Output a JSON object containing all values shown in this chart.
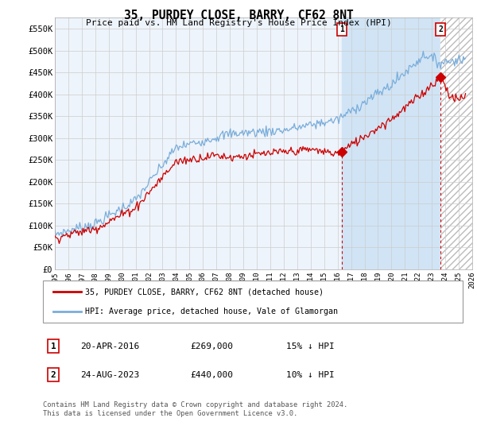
{
  "title": "35, PURDEY CLOSE, BARRY, CF62 8NT",
  "subtitle": "Price paid vs. HM Land Registry's House Price Index (HPI)",
  "ylabel_ticks": [
    "£0",
    "£50K",
    "£100K",
    "£150K",
    "£200K",
    "£250K",
    "£300K",
    "£350K",
    "£400K",
    "£450K",
    "£500K",
    "£550K"
  ],
  "ytick_values": [
    0,
    50000,
    100000,
    150000,
    200000,
    250000,
    300000,
    350000,
    400000,
    450000,
    500000,
    550000
  ],
  "xlim": [
    1995.0,
    2026.0
  ],
  "ylim": [
    0,
    575000
  ],
  "red_color": "#cc0000",
  "blue_color": "#7aaddb",
  "point1_x": 2016.3,
  "point1_y": 269000,
  "point2_x": 2023.65,
  "point2_y": 440000,
  "legend_line1": "35, PURDEY CLOSE, BARRY, CF62 8NT (detached house)",
  "legend_line2": "HPI: Average price, detached house, Vale of Glamorgan",
  "table_row1": [
    "1",
    "20-APR-2016",
    "£269,000",
    "15% ↓ HPI"
  ],
  "table_row2": [
    "2",
    "24-AUG-2023",
    "£440,000",
    "10% ↓ HPI"
  ],
  "footer": "Contains HM Land Registry data © Crown copyright and database right 2024.\nThis data is licensed under the Open Government Licence v3.0.",
  "grid_color": "#cccccc",
  "bg_color": "#ffffff",
  "plot_bg_color": "#eef4fb",
  "shade_between_color": "#d0e4f5",
  "hatch_color": "#cccccc",
  "n_points": 380
}
